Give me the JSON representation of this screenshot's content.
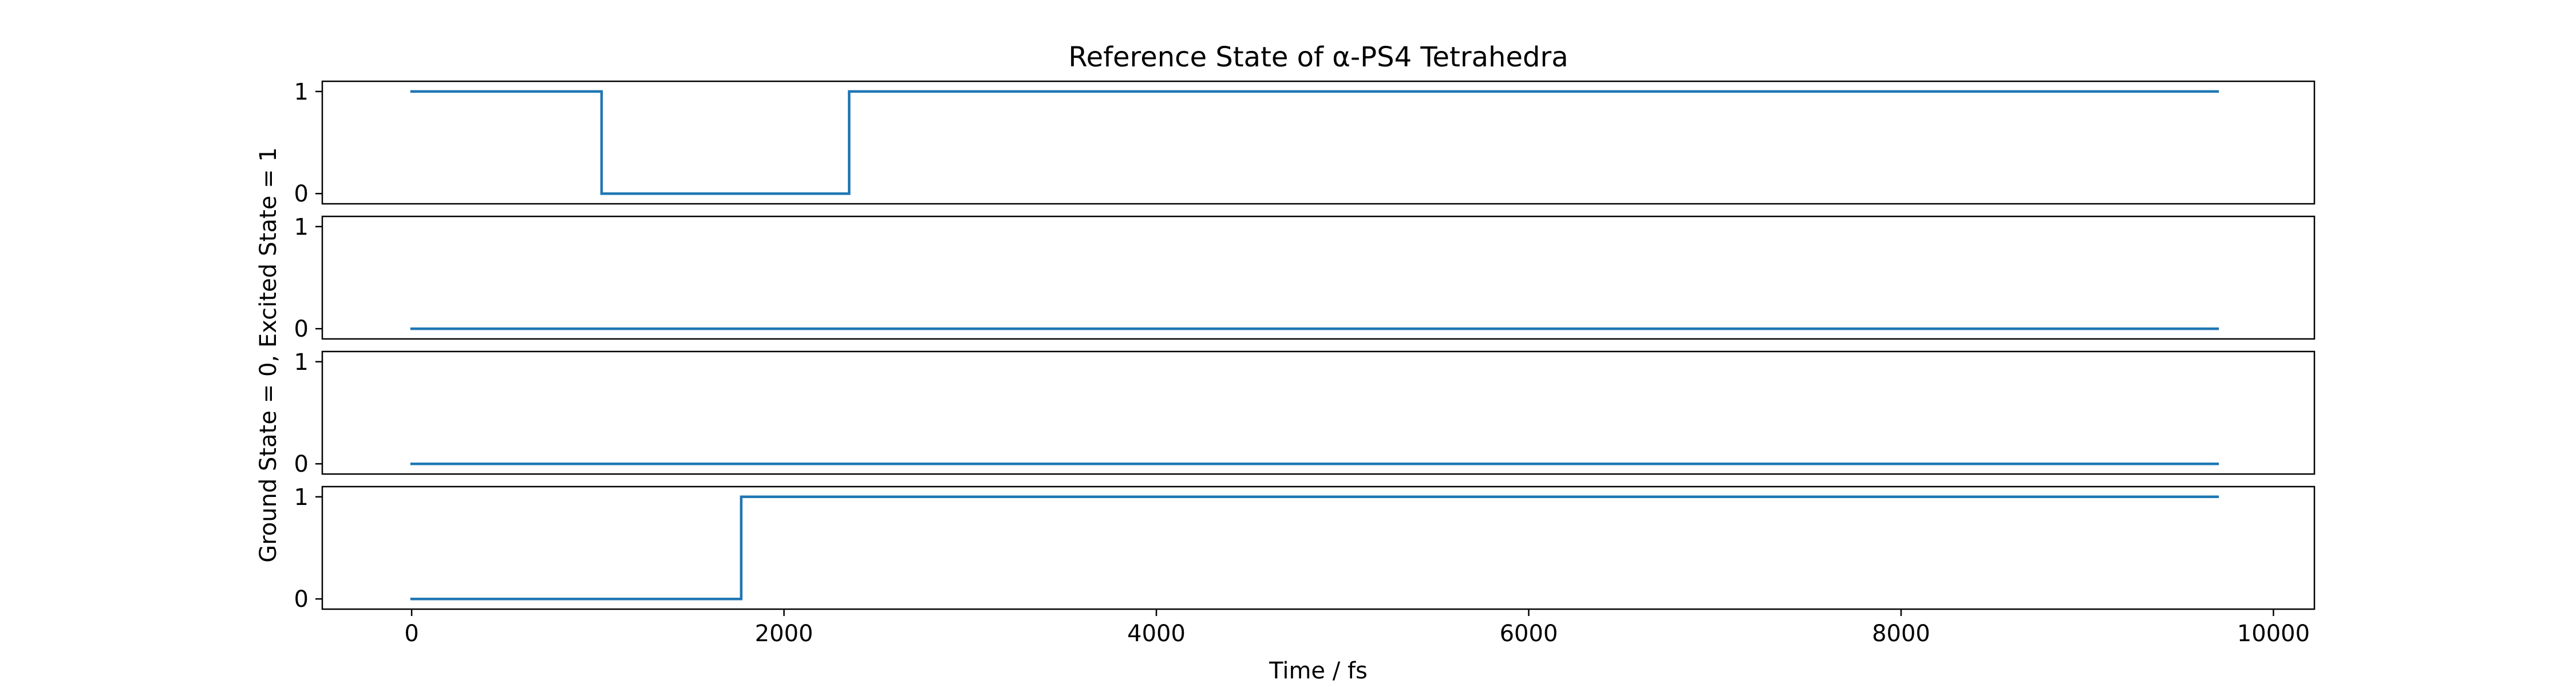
{
  "chart_data": {
    "type": "line",
    "title": "Reference State of α-PS4 Tetrahedra",
    "xlabel": "Time / fs",
    "ylabel": "Ground State = 0, Excited State = 1",
    "xlim": [
      -480,
      10220
    ],
    "ylim": [
      -0.1,
      1.1
    ],
    "x_ticks": [
      0,
      2000,
      4000,
      6000,
      8000,
      10000
    ],
    "x_tick_labels": [
      "0",
      "2000",
      "4000",
      "6000",
      "8000",
      "10000"
    ],
    "y_ticks": [
      0,
      1
    ],
    "y_tick_labels": [
      "0",
      "1"
    ],
    "line_color": "#1f77b4",
    "grid": false,
    "step": "post",
    "series": [
      {
        "x": [
          0,
          1020,
          2350,
          9700
        ],
        "y": [
          1,
          0,
          1,
          1
        ]
      },
      {
        "x": [
          0,
          9700
        ],
        "y": [
          0,
          0
        ]
      },
      {
        "x": [
          0,
          9700
        ],
        "y": [
          0,
          0
        ]
      },
      {
        "x": [
          0,
          1770,
          9700
        ],
        "y": [
          0,
          1,
          1
        ]
      }
    ]
  }
}
